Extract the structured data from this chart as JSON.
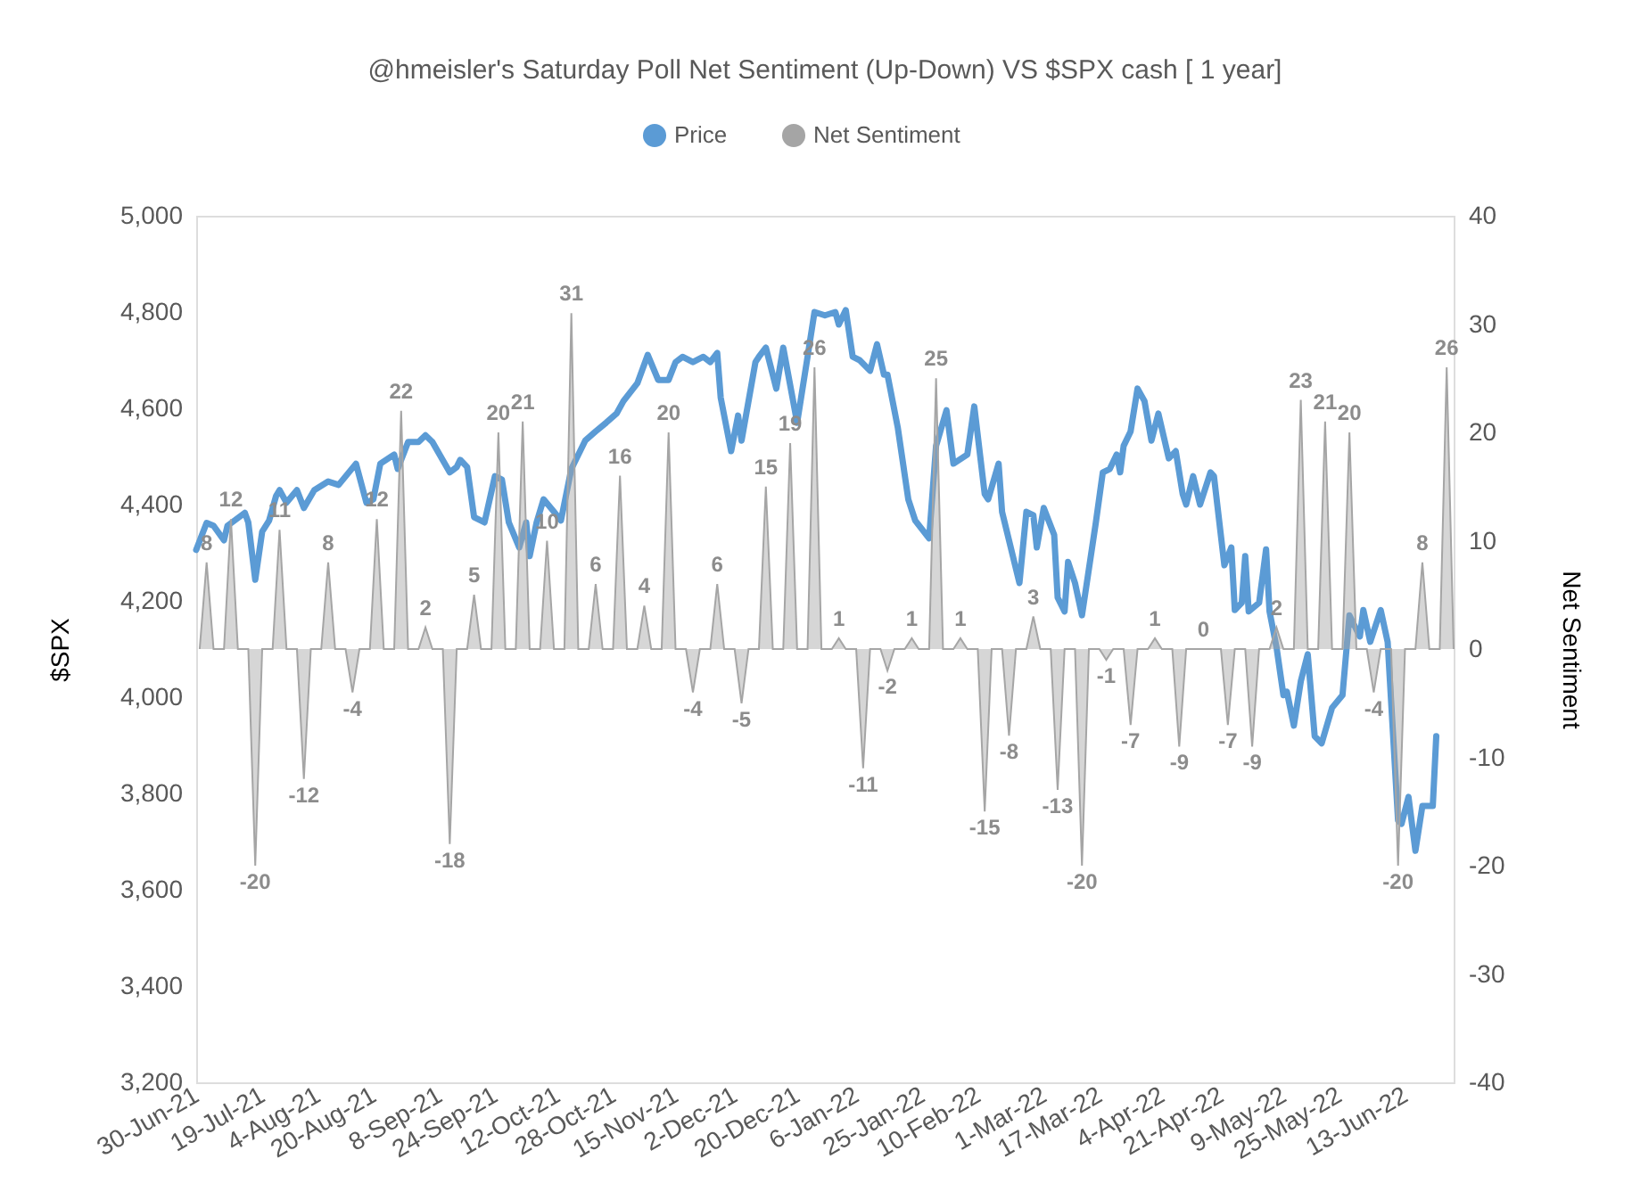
{
  "chart_data": {
    "type": "line",
    "title": "@hmeisler's Saturday Poll Net Sentiment (Up-Down) VS $SPX  cash [ 1 year]",
    "ylabel": "$SPX",
    "y2label": "Net Sentiment",
    "legend": "top",
    "grid": false,
    "xlim": [
      "2021-06-30",
      "2022-06-27"
    ],
    "xticks": [
      {
        "value": "2021-06-30",
        "label": "30-Jun-21"
      },
      {
        "value": "2021-07-19",
        "label": "19-Jul-21"
      },
      {
        "value": "2021-08-04",
        "label": "4-Aug-21"
      },
      {
        "value": "2021-08-20",
        "label": "20-Aug-21"
      },
      {
        "value": "2021-09-08",
        "label": "8-Sep-21"
      },
      {
        "value": "2021-09-24",
        "label": "24-Sep-21"
      },
      {
        "value": "2021-10-12",
        "label": "12-Oct-21"
      },
      {
        "value": "2021-10-28",
        "label": "28-Oct-21"
      },
      {
        "value": "2021-11-15",
        "label": "15-Nov-21"
      },
      {
        "value": "2021-12-02",
        "label": "2-Dec-21"
      },
      {
        "value": "2021-12-20",
        "label": "20-Dec-21"
      },
      {
        "value": "2022-01-06",
        "label": "6-Jan-22"
      },
      {
        "value": "2022-01-25",
        "label": "25-Jan-22"
      },
      {
        "value": "2022-02-10",
        "label": "10-Feb-22"
      },
      {
        "value": "2022-03-01",
        "label": "1-Mar-22"
      },
      {
        "value": "2022-03-17",
        "label": "17-Mar-22"
      },
      {
        "value": "2022-04-04",
        "label": "4-Apr-22"
      },
      {
        "value": "2022-04-21",
        "label": "21-Apr-22"
      },
      {
        "value": "2022-05-09",
        "label": "9-May-22"
      },
      {
        "value": "2022-05-25",
        "label": "25-May-22"
      },
      {
        "value": "2022-06-13",
        "label": "13-Jun-22"
      }
    ],
    "ylim": [
      3200,
      5000
    ],
    "yticks": [
      {
        "value": 3200,
        "label": "3,200"
      },
      {
        "value": 3400,
        "label": "3,400"
      },
      {
        "value": 3600,
        "label": "3,600"
      },
      {
        "value": 3800,
        "label": "3,800"
      },
      {
        "value": 4000,
        "label": "4,000"
      },
      {
        "value": 4200,
        "label": "4,200"
      },
      {
        "value": 4400,
        "label": "4,400"
      },
      {
        "value": 4600,
        "label": "4,600"
      },
      {
        "value": 4800,
        "label": "4,800"
      },
      {
        "value": 5000,
        "label": "5,000"
      }
    ],
    "y2lim": [
      -40,
      40
    ],
    "y2ticks": [
      -40,
      -30,
      -20,
      -10,
      0,
      10,
      20,
      30,
      40
    ],
    "series": [
      {
        "name": "Net Sentiment",
        "type": "area",
        "axis": "y2",
        "color": "#a5a5a5",
        "x": [
          "2021-07-01",
          "2021-07-03",
          "2021-07-05",
          "2021-07-08",
          "2021-07-10",
          "2021-07-12",
          "2021-07-15",
          "2021-07-17",
          "2021-07-19",
          "2021-07-22",
          "2021-07-24",
          "2021-07-26",
          "2021-07-29",
          "2021-07-31",
          "2021-08-02",
          "2021-08-05",
          "2021-08-07",
          "2021-08-09",
          "2021-08-12",
          "2021-08-14",
          "2021-08-16",
          "2021-08-19",
          "2021-08-21",
          "2021-08-23",
          "2021-08-26",
          "2021-08-28",
          "2021-08-30",
          "2021-09-02",
          "2021-09-04",
          "2021-09-06",
          "2021-09-09",
          "2021-09-11",
          "2021-09-13",
          "2021-09-16",
          "2021-09-18",
          "2021-09-20",
          "2021-09-23",
          "2021-09-25",
          "2021-09-27",
          "2021-09-30",
          "2021-10-02",
          "2021-10-04",
          "2021-10-07",
          "2021-10-09",
          "2021-10-11",
          "2021-10-14",
          "2021-10-16",
          "2021-10-18",
          "2021-10-21",
          "2021-10-23",
          "2021-10-25",
          "2021-10-28",
          "2021-10-30",
          "2021-11-01",
          "2021-11-04",
          "2021-11-06",
          "2021-11-08",
          "2021-11-11",
          "2021-11-13",
          "2021-11-15",
          "2021-11-18",
          "2021-11-20",
          "2021-11-22",
          "2021-11-25",
          "2021-11-27",
          "2021-11-29",
          "2021-12-02",
          "2021-12-04",
          "2021-12-06",
          "2021-12-09",
          "2021-12-11",
          "2021-12-13",
          "2021-12-16",
          "2021-12-18",
          "2021-12-20",
          "2021-12-23",
          "2021-12-25",
          "2021-12-27",
          "2021-12-30",
          "2022-01-01",
          "2022-01-03",
          "2022-01-06",
          "2022-01-08",
          "2022-01-10",
          "2022-01-13",
          "2022-01-15",
          "2022-01-17",
          "2022-01-20",
          "2022-01-22",
          "2022-01-24",
          "2022-01-27",
          "2022-01-29",
          "2022-01-31",
          "2022-02-03",
          "2022-02-05",
          "2022-02-07",
          "2022-02-10",
          "2022-02-12",
          "2022-02-14",
          "2022-02-17",
          "2022-02-19",
          "2022-02-21",
          "2022-02-24",
          "2022-02-26",
          "2022-02-28",
          "2022-03-03",
          "2022-03-05",
          "2022-03-07",
          "2022-03-10",
          "2022-03-12",
          "2022-03-14",
          "2022-03-17",
          "2022-03-19",
          "2022-03-21",
          "2022-03-24",
          "2022-03-26",
          "2022-03-28",
          "2022-03-31",
          "2022-04-02",
          "2022-04-04",
          "2022-04-07",
          "2022-04-09",
          "2022-04-11",
          "2022-04-14",
          "2022-04-16",
          "2022-04-18",
          "2022-04-21",
          "2022-04-23",
          "2022-04-25",
          "2022-04-28",
          "2022-04-30",
          "2022-05-02",
          "2022-05-05",
          "2022-05-07",
          "2022-05-09",
          "2022-05-12",
          "2022-05-14",
          "2022-05-16",
          "2022-05-19",
          "2022-05-21",
          "2022-05-23",
          "2022-05-26",
          "2022-05-28",
          "2022-05-30",
          "2022-06-02",
          "2022-06-04",
          "2022-06-06",
          "2022-06-09",
          "2022-06-11",
          "2022-06-13",
          "2022-06-16",
          "2022-06-18",
          "2022-06-20",
          "2022-06-23",
          "2022-06-25",
          "2022-06-27"
        ],
        "values": [
          0,
          8,
          0,
          0,
          12,
          0,
          0,
          -20,
          0,
          0,
          11,
          0,
          0,
          -12,
          0,
          0,
          8,
          0,
          0,
          -4,
          0,
          0,
          12,
          0,
          0,
          22,
          0,
          0,
          2,
          0,
          0,
          -18,
          0,
          0,
          5,
          0,
          0,
          20,
          0,
          0,
          21,
          0,
          0,
          10,
          0,
          0,
          31,
          0,
          0,
          6,
          0,
          0,
          16,
          0,
          0,
          4,
          0,
          0,
          20,
          0,
          0,
          -4,
          0,
          0,
          6,
          0,
          0,
          -5,
          0,
          0,
          15,
          0,
          0,
          19,
          0,
          0,
          26,
          0,
          0,
          1,
          0,
          0,
          -11,
          0,
          0,
          -2,
          0,
          0,
          1,
          0,
          0,
          25,
          0,
          0,
          1,
          0,
          0,
          -15,
          0,
          0,
          -8,
          0,
          0,
          3,
          0,
          0,
          -13,
          0,
          0,
          -20,
          0,
          0,
          -1,
          0,
          0,
          -7,
          0,
          0,
          1,
          0,
          0,
          -9,
          0,
          0,
          0,
          0,
          0,
          -7,
          0,
          0,
          -9,
          0,
          0,
          2,
          0,
          0,
          23,
          0,
          0,
          21,
          0,
          0,
          20,
          0,
          0,
          -4,
          0,
          0,
          -20,
          0,
          0,
          8,
          0,
          0,
          26,
          0
        ],
        "value_labels": [
          null,
          "8",
          null,
          null,
          "12",
          null,
          null,
          "-20",
          null,
          null,
          "11",
          null,
          null,
          "-12",
          null,
          null,
          "8",
          null,
          null,
          "-4",
          null,
          null,
          "12",
          null,
          null,
          "22",
          null,
          null,
          "2",
          null,
          null,
          "-18",
          null,
          null,
          "5",
          null,
          null,
          "20",
          null,
          null,
          "21",
          null,
          null,
          "10",
          null,
          null,
          "31",
          null,
          null,
          "6",
          null,
          null,
          "16",
          null,
          null,
          "4",
          null,
          null,
          "20",
          null,
          null,
          "-4",
          null,
          null,
          "6",
          null,
          null,
          "-5",
          null,
          null,
          "15",
          null,
          null,
          "19",
          null,
          null,
          "26",
          null,
          null,
          "1",
          null,
          null,
          "-11",
          null,
          null,
          "-2",
          null,
          null,
          "1",
          null,
          null,
          "25",
          null,
          null,
          "1",
          null,
          null,
          "-15",
          null,
          null,
          "-8",
          null,
          null,
          "3",
          null,
          null,
          "-13",
          null,
          null,
          "-20",
          null,
          null,
          "-1",
          null,
          null,
          "-7",
          null,
          null,
          "1",
          null,
          null,
          "-9",
          null,
          null,
          "0",
          null,
          null,
          "-7",
          null,
          null,
          "-9",
          null,
          null,
          "2",
          null,
          null,
          "23",
          null,
          null,
          "21",
          null,
          null,
          "20",
          null,
          null,
          "-4",
          null,
          null,
          "-20",
          null,
          null,
          "8",
          null,
          null,
          "26",
          null
        ]
      },
      {
        "name": "Price",
        "color": "#5b9bd5",
        "x": [
          "2021-06-30",
          "2021-07-03",
          "2021-07-05",
          "2021-07-08",
          "2021-07-09",
          "2021-07-14",
          "2021-07-15",
          "2021-07-17",
          "2021-07-19",
          "2021-07-21",
          "2021-07-23",
          "2021-07-24",
          "2021-07-26",
          "2021-07-29",
          "2021-07-31",
          "2021-08-03",
          "2021-08-07",
          "2021-08-10",
          "2021-08-15",
          "2021-08-18",
          "2021-08-20",
          "2021-08-22",
          "2021-08-26",
          "2021-08-27",
          "2021-08-30",
          "2021-09-02",
          "2021-09-04",
          "2021-09-06",
          "2021-09-11",
          "2021-09-13",
          "2021-09-14",
          "2021-09-16",
          "2021-09-18",
          "2021-09-21",
          "2021-09-24",
          "2021-09-26",
          "2021-09-28",
          "2021-10-01",
          "2021-10-03",
          "2021-10-04",
          "2021-10-06",
          "2021-10-08",
          "2021-10-11",
          "2021-10-13",
          "2021-10-16",
          "2021-10-20",
          "2021-10-23",
          "2021-10-26",
          "2021-10-29",
          "2021-10-31",
          "2021-11-04",
          "2021-11-07",
          "2021-11-10",
          "2021-11-13",
          "2021-11-15",
          "2021-11-17",
          "2021-11-20",
          "2021-11-23",
          "2021-11-25",
          "2021-11-27",
          "2021-11-28",
          "2021-12-01",
          "2021-12-03",
          "2021-12-04",
          "2021-12-08",
          "2021-12-09",
          "2021-12-11",
          "2021-12-14",
          "2021-12-16",
          "2021-12-20",
          "2021-12-23",
          "2021-12-25",
          "2021-12-28",
          "2021-12-31",
          "2022-01-01",
          "2022-01-03",
          "2022-01-05",
          "2022-01-07",
          "2022-01-10",
          "2022-01-12",
          "2022-01-14",
          "2022-01-15",
          "2022-01-18",
          "2022-01-21",
          "2022-01-23",
          "2022-01-27",
          "2022-01-29",
          "2022-02-01",
          "2022-02-03",
          "2022-02-07",
          "2022-02-09",
          "2022-02-12",
          "2022-02-13",
          "2022-02-16",
          "2022-02-17",
          "2022-02-22",
          "2022-02-24",
          "2022-02-26",
          "2022-02-27",
          "2022-03-01",
          "2022-03-04",
          "2022-03-05",
          "2022-03-07",
          "2022-03-08",
          "2022-03-10",
          "2022-03-12",
          "2022-03-16",
          "2022-03-18",
          "2022-03-20",
          "2022-03-22",
          "2022-03-23",
          "2022-03-24",
          "2022-03-26",
          "2022-03-28",
          "2022-03-30",
          "2022-04-01",
          "2022-04-03",
          "2022-04-06",
          "2022-04-08",
          "2022-04-10",
          "2022-04-11",
          "2022-04-13",
          "2022-04-15",
          "2022-04-18",
          "2022-04-19",
          "2022-04-22",
          "2022-04-24",
          "2022-04-25",
          "2022-04-27",
          "2022-04-28",
          "2022-04-29",
          "2022-05-02",
          "2022-05-04",
          "2022-05-05",
          "2022-05-07",
          "2022-05-09",
          "2022-05-10",
          "2022-05-12",
          "2022-05-14",
          "2022-05-16",
          "2022-05-18",
          "2022-05-20",
          "2022-05-23",
          "2022-05-26",
          "2022-05-28",
          "2022-05-31",
          "2022-06-01",
          "2022-06-03",
          "2022-06-06",
          "2022-06-08",
          "2022-06-11",
          "2022-06-12",
          "2022-06-14",
          "2022-06-16",
          "2022-06-18",
          "2022-06-21",
          "2022-06-22"
        ],
        "values": [
          4306,
          4362,
          4356,
          4326,
          4356,
          4383,
          4363,
          4244,
          4344,
          4367,
          4418,
          4430,
          4404,
          4430,
          4393,
          4430,
          4448,
          4441,
          4485,
          4404,
          4411,
          4485,
          4504,
          4474,
          4530,
          4530,
          4544,
          4530,
          4467,
          4478,
          4493,
          4478,
          4374,
          4363,
          4459,
          4452,
          4363,
          4311,
          4363,
          4293,
          4363,
          4411,
          4385,
          4367,
          4474,
          4533,
          4552,
          4570,
          4589,
          4615,
          4652,
          4711,
          4659,
          4659,
          4696,
          4707,
          4696,
          4707,
          4696,
          4715,
          4622,
          4511,
          4585,
          4533,
          4696,
          4707,
          4726,
          4641,
          4726,
          4570,
          4707,
          4800,
          4793,
          4800,
          4774,
          4804,
          4707,
          4700,
          4678,
          4733,
          4670,
          4670,
          4559,
          4411,
          4367,
          4330,
          4522,
          4596,
          4485,
          4504,
          4604,
          4422,
          4411,
          4485,
          4385,
          4237,
          4385,
          4378,
          4311,
          4393,
          4337,
          4207,
          4178,
          4281,
          4237,
          4170,
          4363,
          4467,
          4474,
          4504,
          4467,
          4522,
          4552,
          4641,
          4615,
          4533,
          4589,
          4496,
          4511,
          4422,
          4400,
          4459,
          4400,
          4467,
          4459,
          4274,
          4311,
          4181,
          4196,
          4293,
          4178,
          4196,
          4307,
          4178,
          4104,
          4004,
          4011,
          3941,
          4033,
          4089,
          3919,
          3904,
          3978,
          4004,
          4170,
          4126,
          4181,
          4115,
          4181,
          4115,
          3744,
          3737,
          3793,
          3681,
          3774,
          3774,
          3919
        ]
      }
    ]
  }
}
